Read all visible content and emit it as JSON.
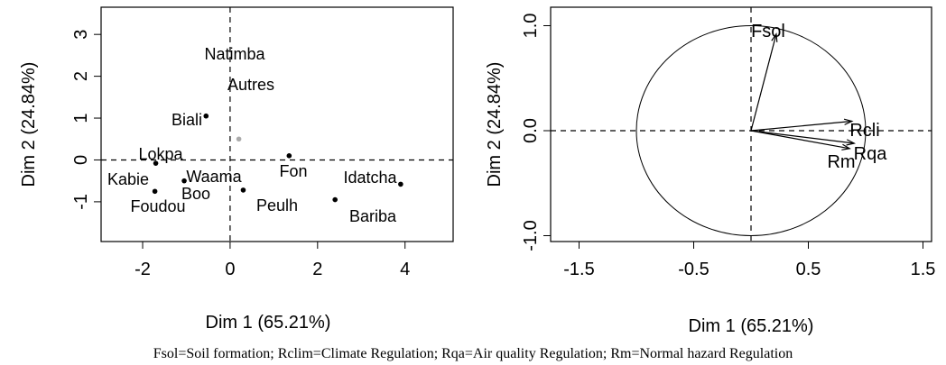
{
  "caption": "Fsol=Soil formation; Rclim=Climate Regulation; Rqa=Air quality Regulation; Rm=Normal hazard Regulation",
  "chart_data": [
    {
      "type": "scatter",
      "title": "",
      "xlabel": "Dim 1 (65.21%)",
      "ylabel": "Dim 2 (24.84%)",
      "xlim": [
        -2.95,
        5.1
      ],
      "ylim": [
        -1.95,
        3.65
      ],
      "xticks": [
        -2,
        0,
        2,
        4
      ],
      "xtick_labels": [
        "-2",
        "0",
        "2",
        "4"
      ],
      "yticks": [
        -1,
        0,
        1,
        2,
        3
      ],
      "ytick_labels": [
        "-1",
        "0",
        "1",
        "2",
        "3"
      ],
      "reference_lines": {
        "x": 0,
        "y": 0
      },
      "grid": false,
      "points": [
        {
          "label": "Natimba",
          "x": 0.2,
          "y": 0.5,
          "color": "#aaaaaa"
        },
        {
          "label": "Autres",
          "x": 0.2,
          "y": 0.5,
          "color": "#aaaaaa"
        },
        {
          "label": "Biali",
          "x": -0.55,
          "y": 1.05,
          "color": "#000000"
        },
        {
          "label": "Lokpa",
          "x": -1.7,
          "y": -0.08,
          "color": "#000000"
        },
        {
          "label": "Kabie",
          "x": -1.7,
          "y": -0.08,
          "color": "#000000"
        },
        {
          "label": "Waama",
          "x": -1.05,
          "y": -0.5,
          "color": "#000000"
        },
        {
          "label": "Boo",
          "x": -1.05,
          "y": -0.5,
          "color": "#000000"
        },
        {
          "label": "Foudou",
          "x": -1.72,
          "y": -0.75,
          "color": "#000000"
        },
        {
          "label": "Fon",
          "x": 1.35,
          "y": 0.1,
          "color": "#000000"
        },
        {
          "label": "Peulh",
          "x": 0.3,
          "y": -0.72,
          "color": "#000000"
        },
        {
          "label": "Idatcha",
          "x": 3.9,
          "y": -0.58,
          "color": "#000000"
        },
        {
          "label": "Bariba",
          "x": 2.4,
          "y": -0.95,
          "color": "#000000"
        }
      ]
    },
    {
      "type": "vector",
      "title": "",
      "xlabel": "Dim 1 (65.21%)",
      "ylabel": "Dim 2 (24.84%)",
      "xlim": [
        -1.5,
        1.5
      ],
      "ylim": [
        -1.05,
        1.05
      ],
      "xticks": [
        -1.5,
        -0.5,
        0.5,
        1.5
      ],
      "xtick_labels": [
        "-1.5",
        "-0.5",
        "0.5",
        "1.5"
      ],
      "yticks": [
        -1.0,
        0.0,
        1.0
      ],
      "ytick_labels": [
        "-1.0",
        "0.0",
        "1.0"
      ],
      "unit_circle": true,
      "reference_lines": {
        "x": 0,
        "y": 0
      },
      "grid": false,
      "vectors": [
        {
          "label": "Fsol",
          "x": 0.22,
          "y": 0.92
        },
        {
          "label": "Rcli",
          "x": 0.88,
          "y": 0.09
        },
        {
          "label": "Rqa",
          "x": 0.9,
          "y": -0.12
        },
        {
          "label": "Rm",
          "x": 0.86,
          "y": -0.17
        }
      ]
    }
  ]
}
